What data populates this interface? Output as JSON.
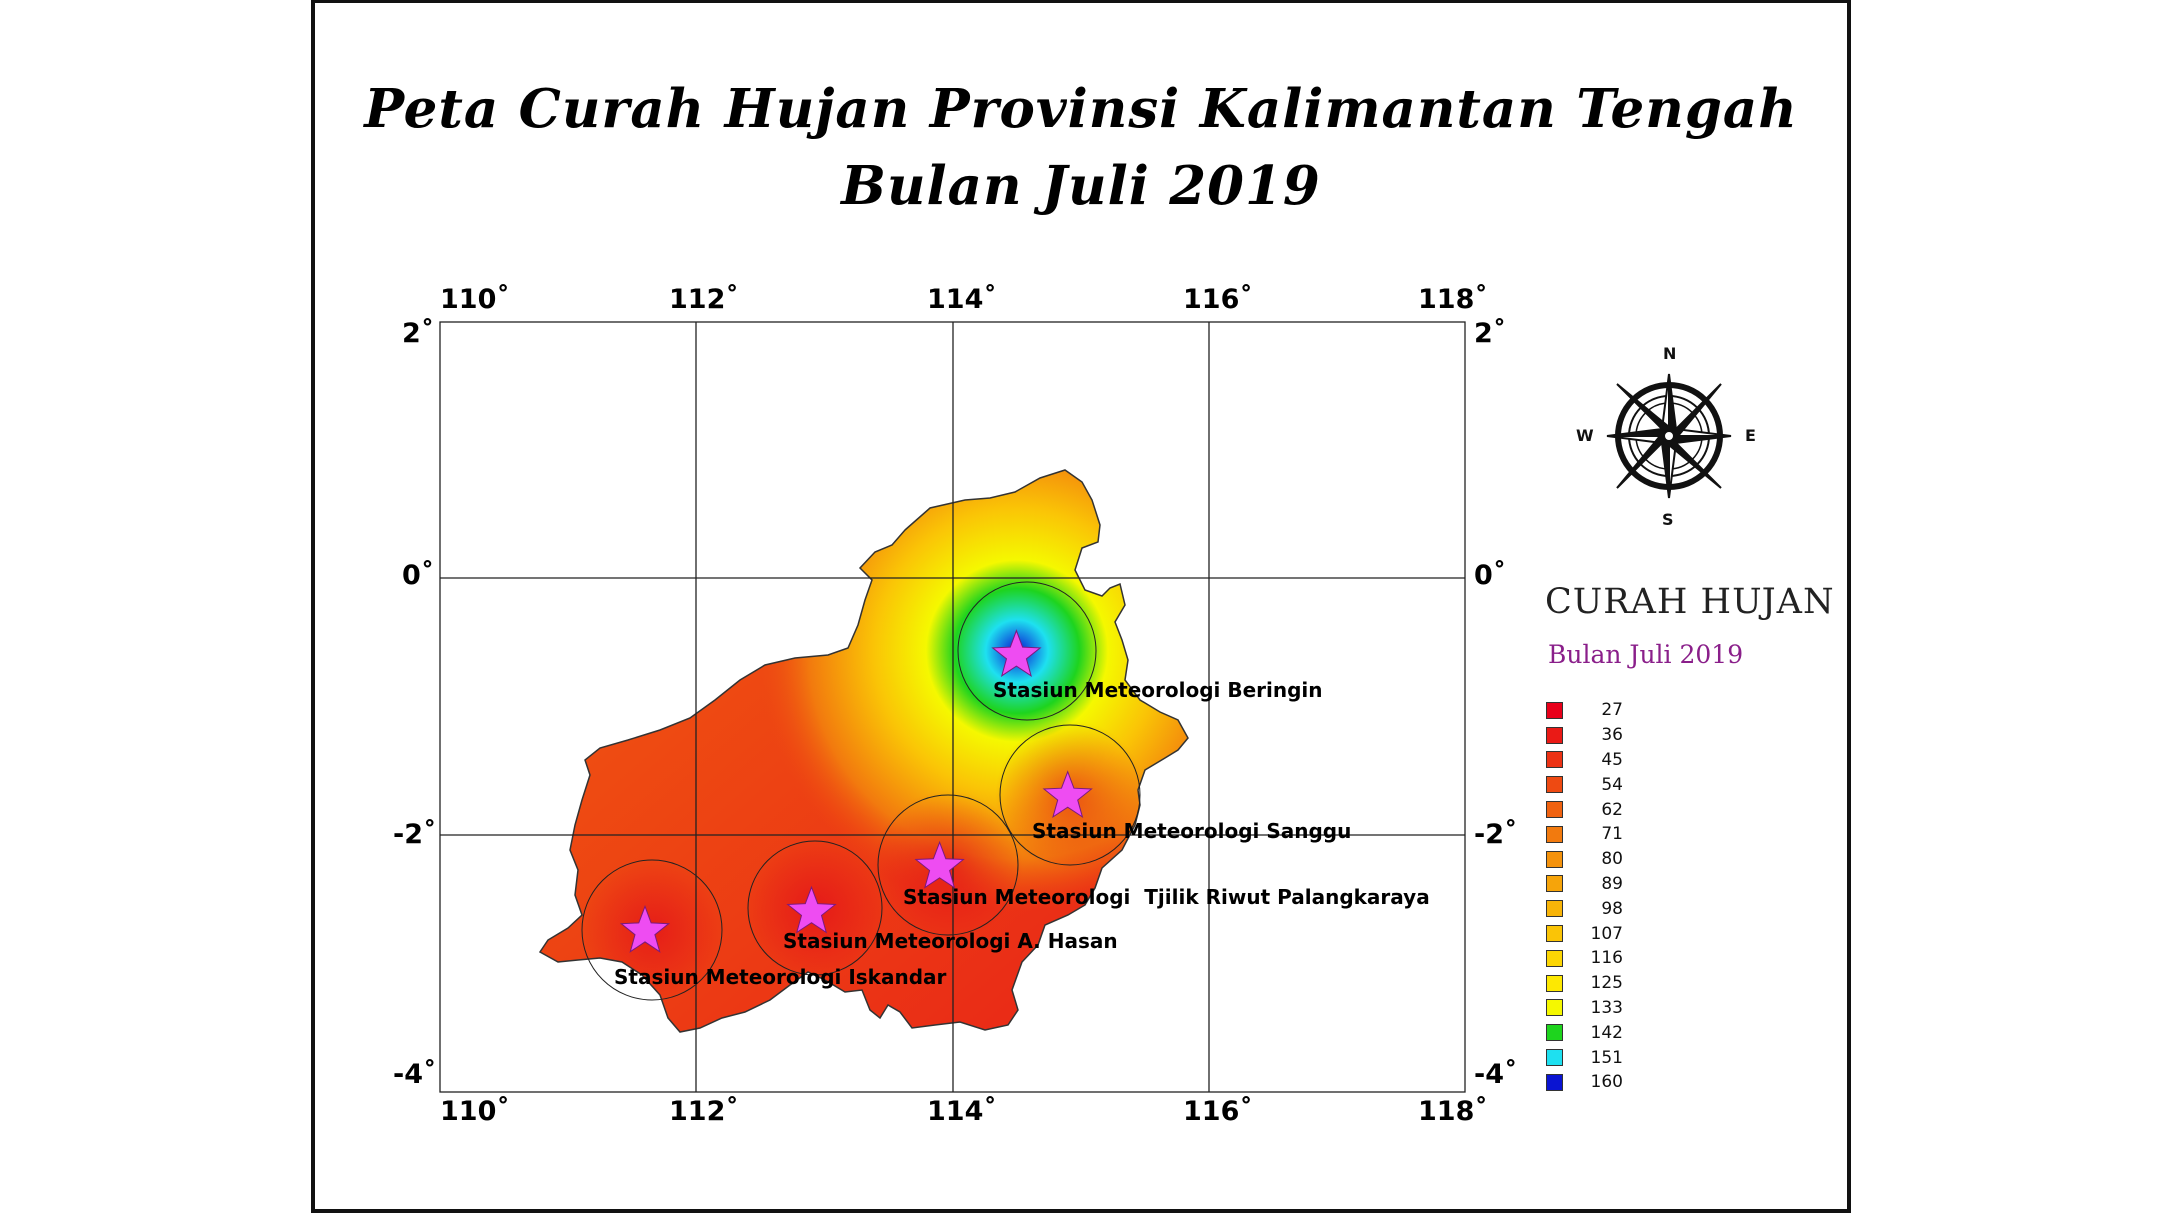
{
  "title": {
    "line1": "Peta Curah Hujan Provinsi Kalimantan Tengah",
    "line2": "Bulan Juli 2019"
  },
  "axes": {
    "x_ticks": [
      "110˚",
      "112˚",
      "114˚",
      "116˚",
      "118˚"
    ],
    "y_ticks": [
      "2˚",
      "0˚",
      "-2˚",
      "-4˚"
    ]
  },
  "compass": {
    "n": "N",
    "s": "S",
    "e": "E",
    "w": "W",
    "icon": "compass-rose-icon"
  },
  "stations": [
    {
      "name": "Stasiun Meteorologi Beringin",
      "lon": 114.5,
      "lat": -0.6
    },
    {
      "name": "Stasiun Meteorologi Sanggu",
      "lon": 114.9,
      "lat": -1.7
    },
    {
      "name": "Stasiun Meteorologi  Tjilik Riwut Palangkaraya",
      "lon": 113.9,
      "lat": -2.25
    },
    {
      "name": "Stasiun Meteorologi A. Hasan",
      "lon": 112.9,
      "lat": -2.6
    },
    {
      "name": "Stasiun Meteorologi Iskandar",
      "lon": 111.6,
      "lat": -2.75
    }
  ],
  "legend": {
    "title": "CURAH HUJAN",
    "subtitle": "Bulan Juli 2019",
    "items": [
      {
        "label": "27",
        "color": "#e8001a"
      },
      {
        "label": "36",
        "color": "#ea1a16"
      },
      {
        "label": "45",
        "color": "#ec3214"
      },
      {
        "label": "54",
        "color": "#ee4a12"
      },
      {
        "label": "62",
        "color": "#f06210"
      },
      {
        "label": "71",
        "color": "#f27a0e"
      },
      {
        "label": "80",
        "color": "#f4920c"
      },
      {
        "label": "89",
        "color": "#f6a40a"
      },
      {
        "label": "98",
        "color": "#f8b408"
      },
      {
        "label": "107",
        "color": "#fac406"
      },
      {
        "label": "116",
        "color": "#fcd604"
      },
      {
        "label": "125",
        "color": "#fde802"
      },
      {
        "label": "133",
        "color": "#f5f800"
      },
      {
        "label": "142",
        "color": "#1ed41e"
      },
      {
        "label": "151",
        "color": "#1ee0f0"
      },
      {
        "label": "160",
        "color": "#0a14d2"
      }
    ]
  },
  "colors": {
    "station_marker": "#ee4cf2"
  }
}
